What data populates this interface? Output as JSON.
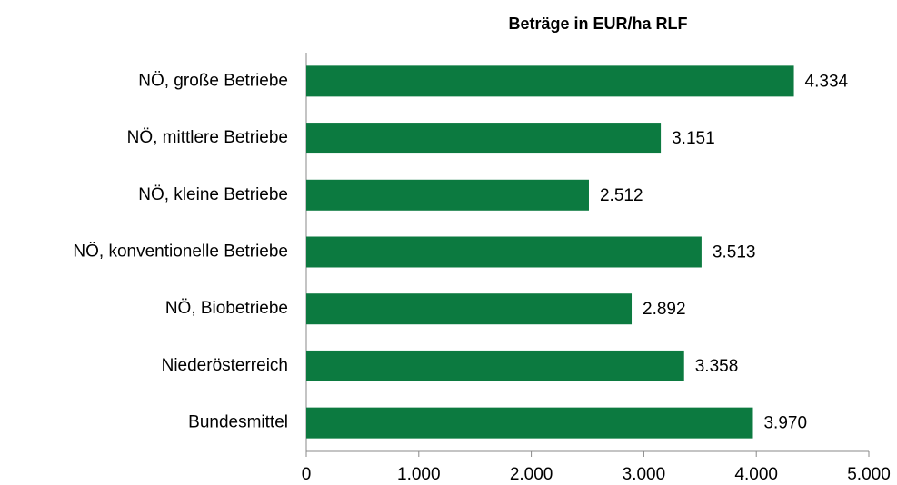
{
  "chart_data": {
    "type": "bar",
    "orientation": "horizontal",
    "title": "Beträge in EUR/ha RLF",
    "categories": [
      "NÖ, große Betriebe",
      "NÖ, mittlere Betriebe",
      "NÖ, kleine Betriebe",
      "NÖ, konventionelle Betriebe",
      "NÖ, Biobetriebe",
      "Niederösterreich",
      "Bundesmittel"
    ],
    "values": [
      4334,
      3151,
      2512,
      3513,
      2892,
      3358,
      3970
    ],
    "value_labels": [
      "4.334",
      "3.151",
      "2.512",
      "3.513",
      "2.892",
      "3.358",
      "3.970"
    ],
    "color": "#0c7a40",
    "xlim": [
      0,
      5000
    ],
    "xticks": [
      0,
      {
        "value": 1000,
        "label": "1.000"
      },
      {
        "value": 2000,
        "label": "2.000"
      },
      {
        "value": 3000,
        "label": "3.000"
      },
      {
        "value": 4000,
        "label": "4.000"
      },
      {
        "value": 5000,
        "label": "5.000"
      }
    ],
    "grid": false
  }
}
